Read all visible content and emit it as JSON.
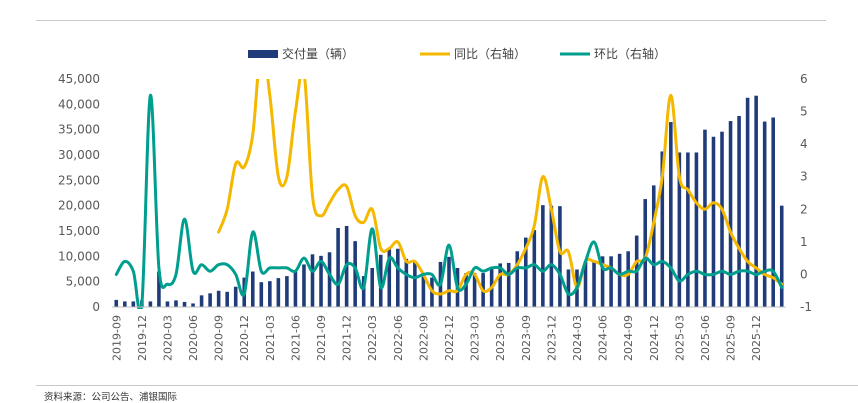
{
  "source_note": "资料来源：公司公告、浦银国际",
  "chart_data": {
    "type": "bar+line",
    "title": "",
    "xlabel": "",
    "ylabel": "",
    "y_left": {
      "range": [
        0,
        45000
      ],
      "ticks": [
        "0",
        "5,000",
        "10,000",
        "15,000",
        "20,000",
        "25,000",
        "30,000",
        "35,000",
        "40,000",
        "45,000"
      ]
    },
    "y_right": {
      "range": [
        -1,
        6
      ],
      "ticks": [
        "-1",
        "0",
        "1",
        "2",
        "3",
        "4",
        "5",
        "6"
      ]
    },
    "x_tick_labels": [
      "2019-09",
      "2019-12",
      "2020-03",
      "2020-06",
      "2020-09",
      "2020-12",
      "2021-03",
      "2021-06",
      "2021-09",
      "2021-12",
      "2022-03",
      "2022-06",
      "2022-09",
      "2022-12",
      "2023-03",
      "2023-06",
      "2023-09",
      "2023-12",
      "2024-03",
      "2024-06",
      "2024-09",
      "2024-12",
      "2025-03",
      "2025-06",
      "2025-09",
      "2025-12"
    ],
    "legend_position": "top",
    "grid": false,
    "series": [
      {
        "name": "交付量（辆）",
        "kind": "bar",
        "axis": "left",
        "color": "#1f3b7a",
        "values": [
          1400,
          1100,
          1100,
          1300,
          1100,
          7000,
          1100,
          1300,
          1000,
          700,
          2300,
          2700,
          3200,
          3000,
          4000,
          5800,
          7000,
          4900,
          5100,
          5700,
          6100,
          7100,
          8400,
          10400,
          10100,
          10800,
          15600,
          16000,
          13000,
          6100,
          7700,
          10300,
          11500,
          11500,
          9500,
          9000,
          6000,
          5800,
          8900,
          9900,
          7700,
          6700,
          6700,
          6700,
          7700,
          8600,
          8700,
          11000,
          13700,
          15200,
          20100,
          20000,
          19900,
          7400,
          7400,
          9000,
          9000,
          10000,
          10000,
          10500,
          11000,
          14100,
          21300,
          24000,
          30700,
          36500,
          30500,
          30500,
          30500,
          35000,
          33600,
          34600,
          36700,
          37700,
          41300,
          41700,
          36600,
          37400,
          20000
        ]
      },
      {
        "name": "同比（右轴）",
        "kind": "line",
        "axis": "right",
        "color": "#f5b800",
        "values": [
          null,
          null,
          null,
          null,
          null,
          null,
          null,
          null,
          null,
          null,
          null,
          null,
          1.3,
          2.0,
          3.4,
          3.3,
          4.3,
          7.0,
          5.5,
          3.0,
          3.0,
          5.0,
          6.2,
          2.4,
          1.8,
          2.2,
          2.6,
          2.7,
          1.8,
          1.6,
          2.0,
          0.8,
          0.8,
          1.0,
          0.4,
          0.4,
          0.0,
          -0.5,
          -0.6,
          -0.5,
          -0.5,
          0.0,
          0.0,
          -0.5,
          -0.4,
          0.0,
          0.0,
          0.3,
          0.8,
          1.5,
          3.0,
          2.0,
          0.7,
          0.7,
          -0.4,
          0.4,
          0.4,
          0.3,
          0.2,
          0.0,
          0.0,
          0.4,
          0.5,
          1.6,
          3.0,
          5.5,
          3.0,
          2.6,
          2.2,
          2.0,
          2.2,
          2.0,
          1.3,
          0.8,
          0.4,
          0.2,
          0.0,
          -0.1,
          -0.3
        ]
      },
      {
        "name": "环比（右轴）",
        "kind": "line",
        "axis": "right",
        "color": "#009e8e",
        "values": [
          0.0,
          0.4,
          0.1,
          -0.9,
          5.5,
          0.2,
          -0.3,
          0.0,
          1.7,
          0.1,
          0.3,
          0.1,
          0.3,
          0.3,
          0.0,
          -0.6,
          1.3,
          0.1,
          0.2,
          0.2,
          0.2,
          0.1,
          0.5,
          0.1,
          0.4,
          0.0,
          -0.3,
          0.3,
          0.2,
          -0.4,
          1.4,
          -0.4,
          0.5,
          0.2,
          0.0,
          -0.1,
          0.0,
          0.0,
          -0.3,
          0.9,
          -0.4,
          -0.3,
          0.2,
          0.1,
          0.2,
          0.2,
          0.0,
          0.2,
          0.2,
          0.3,
          0.1,
          0.3,
          0.0,
          -0.6,
          -0.4,
          0.4,
          1.0,
          0.2,
          0.2,
          0.0,
          0.1,
          0.1,
          0.5,
          0.3,
          0.4,
          0.2,
          -0.2,
          0.0,
          0.1,
          0.0,
          0.0,
          0.1,
          0.0,
          0.1,
          0.1,
          0.0,
          0.1,
          0.1,
          -0.4
        ]
      }
    ]
  }
}
